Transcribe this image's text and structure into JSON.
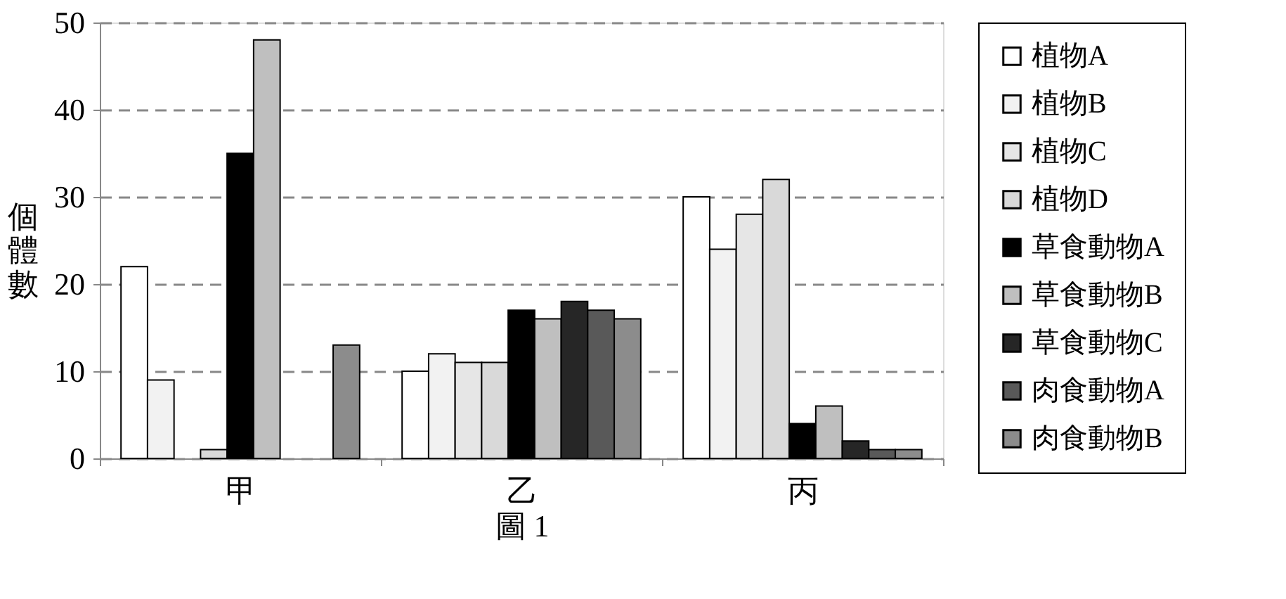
{
  "chart_data": {
    "type": "bar",
    "xlabel": "圖 1",
    "ylabel": "個體數",
    "categories": [
      "甲",
      "乙",
      "丙"
    ],
    "series": [
      {
        "name": "植物A",
        "color": "#ffffff",
        "values": [
          22,
          10,
          30
        ]
      },
      {
        "name": "植物B",
        "color": "#f2f2f2",
        "values": [
          9,
          12,
          24
        ]
      },
      {
        "name": "植物C",
        "color": "#e6e6e6",
        "values": [
          0,
          11,
          28
        ]
      },
      {
        "name": "植物D",
        "color": "#d9d9d9",
        "values": [
          1,
          11,
          32
        ]
      },
      {
        "name": "草食動物A",
        "color": "#000000",
        "values": [
          35,
          17,
          4
        ]
      },
      {
        "name": "草食動物B",
        "color": "#bfbfbf",
        "values": [
          48,
          16,
          6
        ]
      },
      {
        "name": "草食動物C",
        "color": "#262626",
        "values": [
          0,
          18,
          2
        ]
      },
      {
        "name": "肉食動物A",
        "color": "#595959",
        "values": [
          0,
          17,
          1
        ]
      },
      {
        "name": "肉食動物B",
        "color": "#8c8c8c",
        "values": [
          13,
          16,
          1
        ]
      }
    ],
    "ylim": [
      0,
      50
    ],
    "yticks": [
      0,
      10,
      20,
      30,
      40,
      50
    ],
    "grid": "y",
    "legend": "right"
  }
}
